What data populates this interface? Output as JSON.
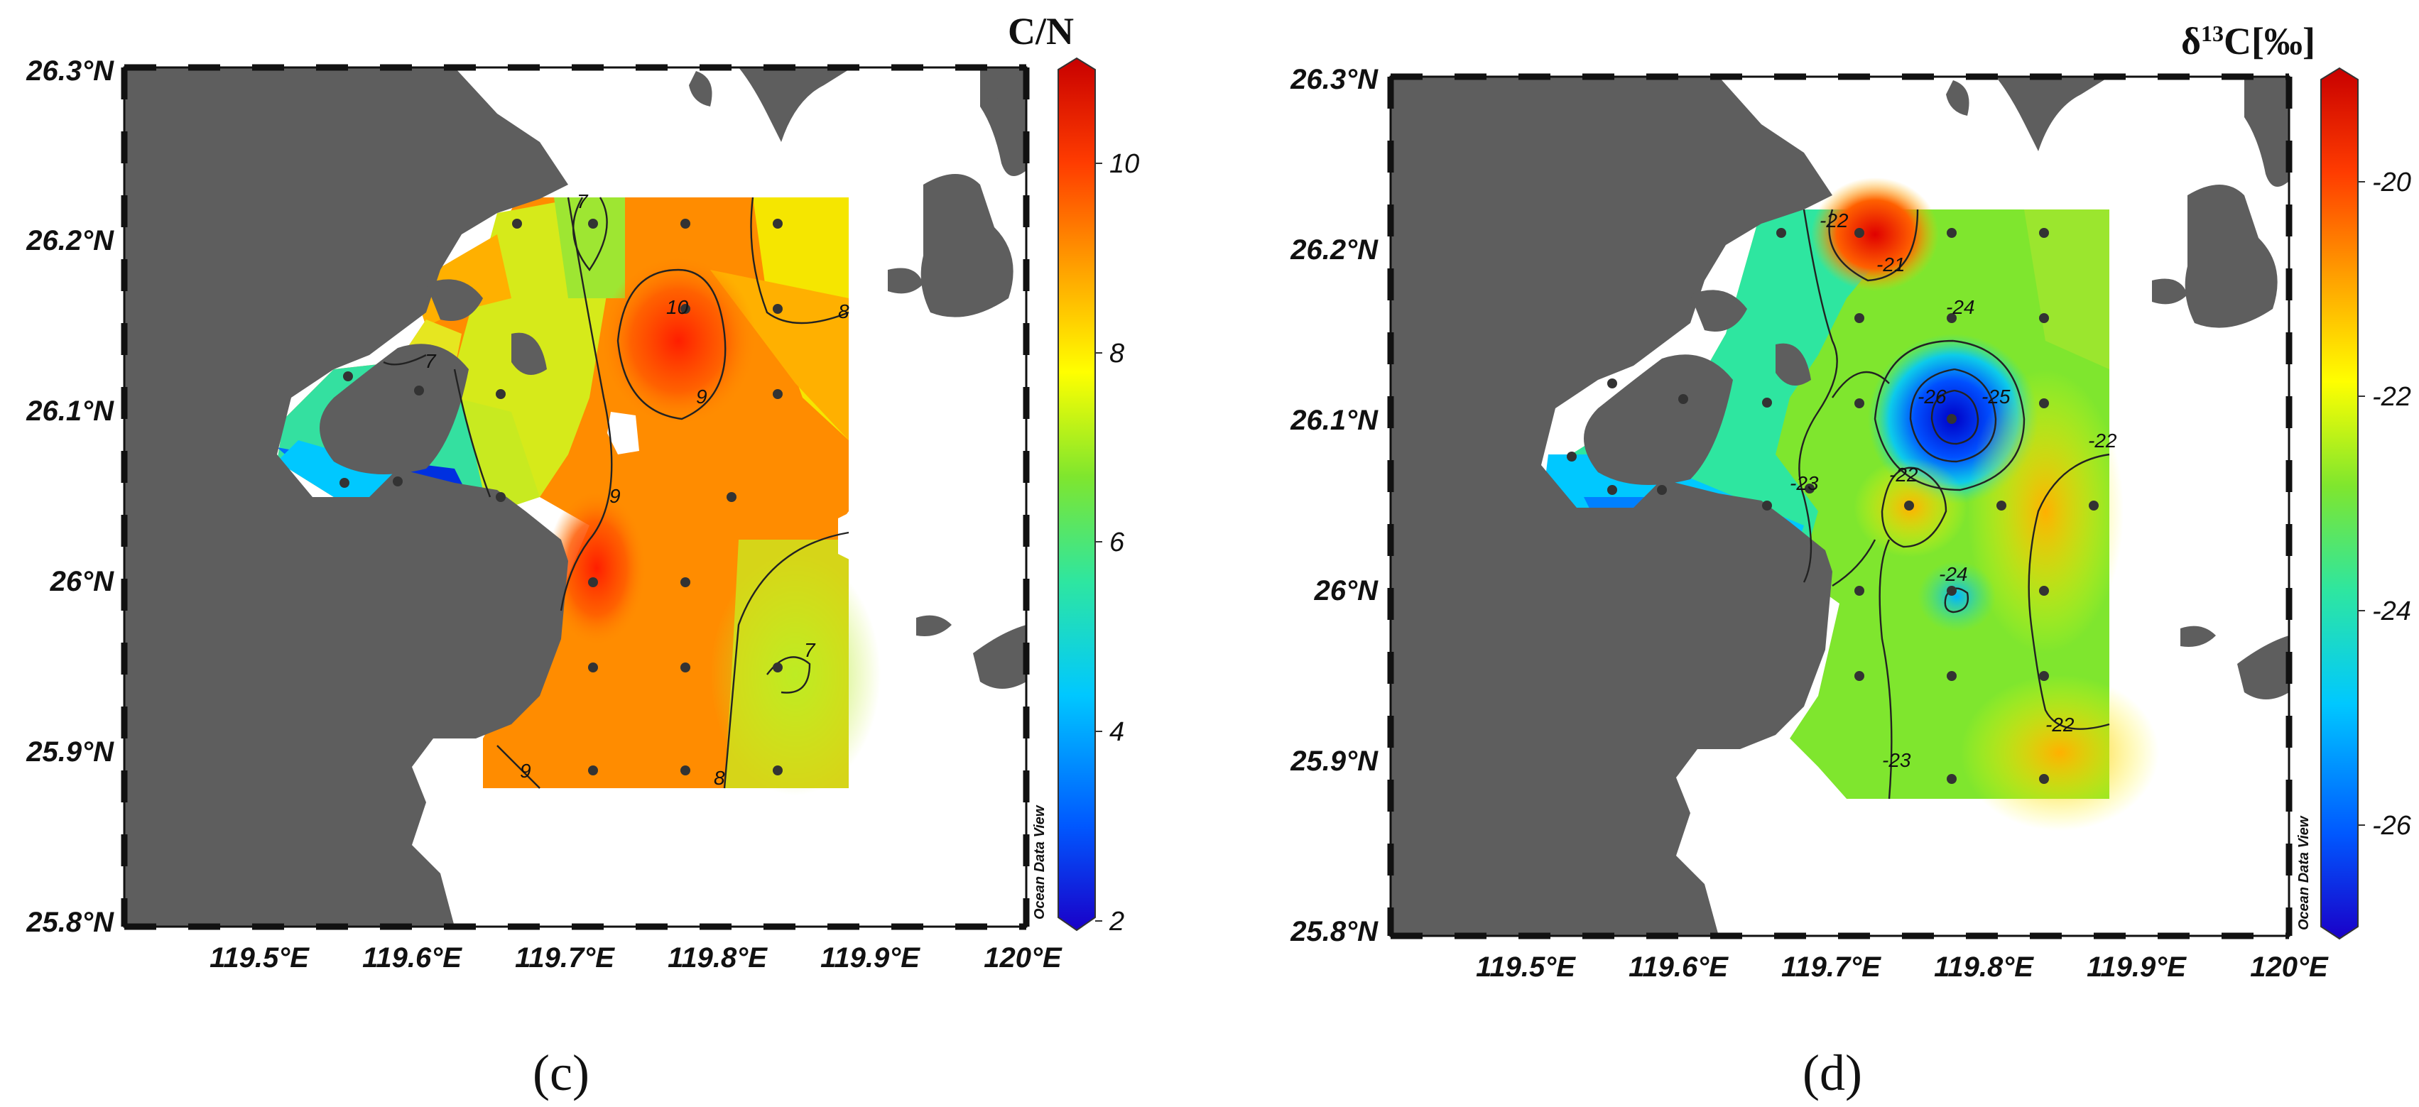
{
  "maps": [
    {
      "id": "c",
      "colorbar_title": "C/N",
      "colorbar_ticks": [
        "2",
        "4",
        "6",
        "8",
        "10"
      ],
      "contour_labels": [
        "7",
        "10",
        "8",
        "9",
        "7",
        "9",
        "7",
        "9",
        "8"
      ],
      "panel_label": "(c)",
      "watermark": "Ocean Data View"
    },
    {
      "id": "d",
      "colorbar_title": "δ13C[‰]",
      "colorbar_title_base": "δ",
      "colorbar_title_sup": "13",
      "colorbar_title_rest": "C[‰]",
      "colorbar_ticks": [
        "-26",
        "-24",
        "-22",
        "-20"
      ],
      "contour_labels": [
        "-22",
        "-21",
        "-24",
        "-26",
        "-25",
        "-22",
        "-23",
        "-22",
        "-24",
        "-22",
        "-23"
      ],
      "panel_label": "(d)",
      "watermark": "Ocean Data View"
    }
  ],
  "lat_labels": [
    "26.3°N",
    "26.2°N",
    "26.1°N",
    "26°N",
    "25.9°N",
    "25.8°N"
  ],
  "lon_labels": [
    "119.5°E",
    "119.6°E",
    "119.7°E",
    "119.8°E",
    "119.9°E",
    "120°E"
  ],
  "colors": {
    "land": "#5e5e5e",
    "colormap": [
      "#1a00c8",
      "#0058ff",
      "#00c8ff",
      "#2ee6a0",
      "#7fe62e",
      "#ffff00",
      "#ffa000",
      "#ff3c00",
      "#c80000"
    ]
  }
}
